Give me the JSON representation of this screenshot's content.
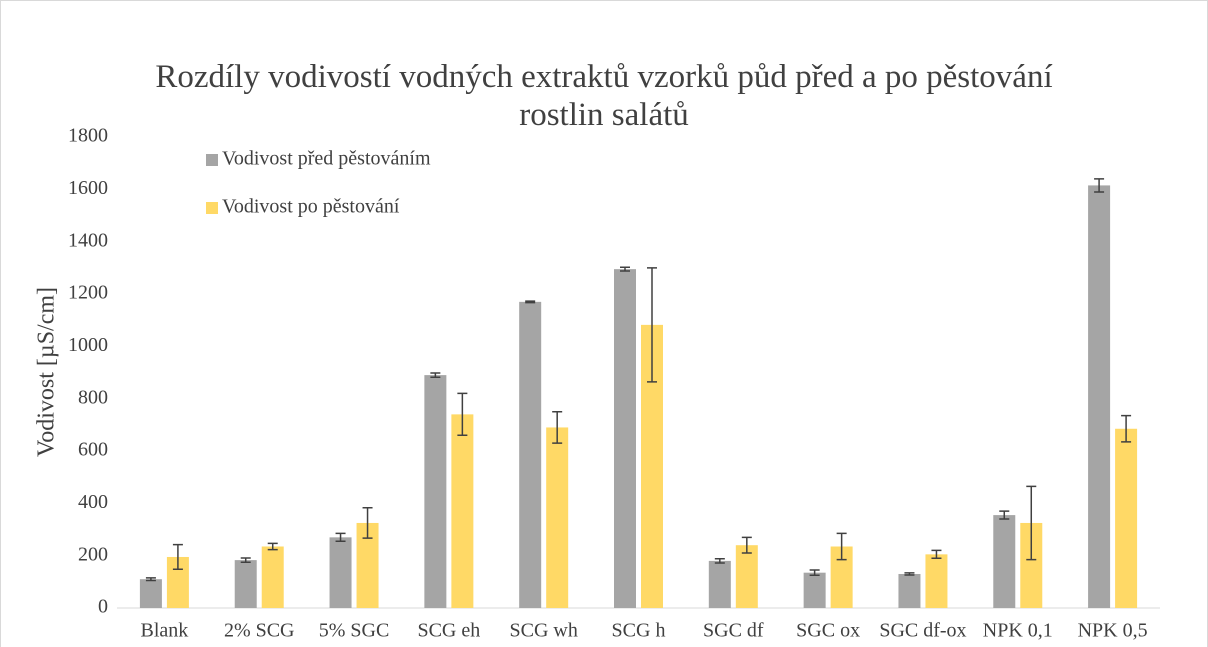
{
  "chart_data": {
    "type": "bar",
    "title": "Rozdíly vodivostí vodných extraktů vzorků půd před a po pěstování rostlin salátů",
    "y_label": "Vodivost [µS/cm]",
    "categories": [
      "Blank",
      "2% SCG",
      "5% SGC",
      "SCG eh",
      "SCG wh",
      "SCG h",
      "SGC df",
      "SGC ox",
      "SGC df-ox",
      "NPK 0,1",
      "NPK 0,5"
    ],
    "series": [
      {
        "name": "Vodivost před pěstováním",
        "color": "#a5a5a5",
        "values": [
          110,
          183,
          270,
          890,
          1170,
          1295,
          180,
          135,
          130,
          355,
          1615
        ],
        "errors": [
          5,
          8,
          15,
          8,
          3,
          7,
          8,
          10,
          4,
          15,
          25
        ]
      },
      {
        "name": "Vodivost po pěstování",
        "color": "#ffd966",
        "values": [
          195,
          235,
          325,
          740,
          690,
          1082,
          240,
          235,
          205,
          325,
          685
        ],
        "errors": [
          47,
          12,
          58,
          80,
          60,
          218,
          30,
          50,
          15,
          140,
          50
        ]
      }
    ],
    "ylim": [
      0,
      1800
    ],
    "yticks": [
      0,
      200,
      400,
      600,
      800,
      1000,
      1200,
      1400,
      1600,
      1800
    ],
    "grid": false,
    "legend": "top-left"
  }
}
